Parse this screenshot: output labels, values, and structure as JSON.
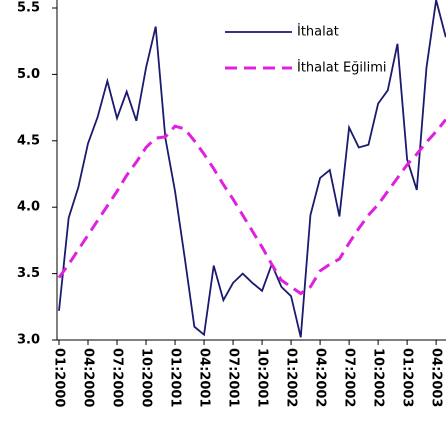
{
  "chart_data": {
    "type": "line",
    "categories": [
      "01:2000",
      null,
      null,
      "04:2000",
      null,
      null,
      "07:2000",
      null,
      null,
      "10:2000",
      null,
      null,
      "01:2001",
      null,
      null,
      "04:2001",
      null,
      null,
      "07:2001",
      null,
      null,
      "10:2001",
      null,
      null,
      "01:2002",
      null,
      null,
      "04:2002",
      null,
      null,
      "07:2002",
      null,
      null,
      "10:2002",
      null,
      null,
      "01:2003",
      null,
      null,
      "04:2003",
      null
    ],
    "series": [
      {
        "name": "İthalat",
        "color": "#1a1a6e",
        "dash": false,
        "values": [
          3.22,
          3.92,
          4.15,
          4.48,
          4.68,
          4.95,
          4.67,
          4.87,
          4.65,
          5.05,
          5.36,
          4.52,
          4.12,
          3.62,
          3.1,
          3.04,
          3.56,
          3.3,
          3.43,
          3.5,
          3.43,
          3.37,
          3.57,
          3.4,
          3.33,
          3.02,
          3.94,
          4.22,
          4.28,
          3.93,
          4.6,
          4.45,
          4.47,
          4.78,
          4.88,
          5.23,
          4.36,
          4.13,
          5.05,
          5.56,
          5.28
        ]
      },
      {
        "name": "İthalat Eğilimi",
        "color": "#e020e0",
        "dash": true,
        "values": [
          3.47,
          3.57,
          3.68,
          3.79,
          3.9,
          4.01,
          4.12,
          4.24,
          4.34,
          4.45,
          4.52,
          4.53,
          4.61,
          4.59,
          4.5,
          4.4,
          4.29,
          4.17,
          4.06,
          3.94,
          3.82,
          3.7,
          3.57,
          3.45,
          3.4,
          3.35,
          3.4,
          3.52,
          3.57,
          3.61,
          3.73,
          3.84,
          3.94,
          4.02,
          4.12,
          4.22,
          4.32,
          4.4,
          4.49,
          4.57,
          4.66
        ]
      }
    ],
    "ylim": [
      3,
      5.5
    ],
    "yticks": [
      {
        "value": 3,
        "label": "3.0"
      },
      3.5,
      {
        "value": 4,
        "label": "4.0"
      },
      4.5,
      {
        "value": 5,
        "label": "5.0"
      },
      5.5
    ]
  }
}
